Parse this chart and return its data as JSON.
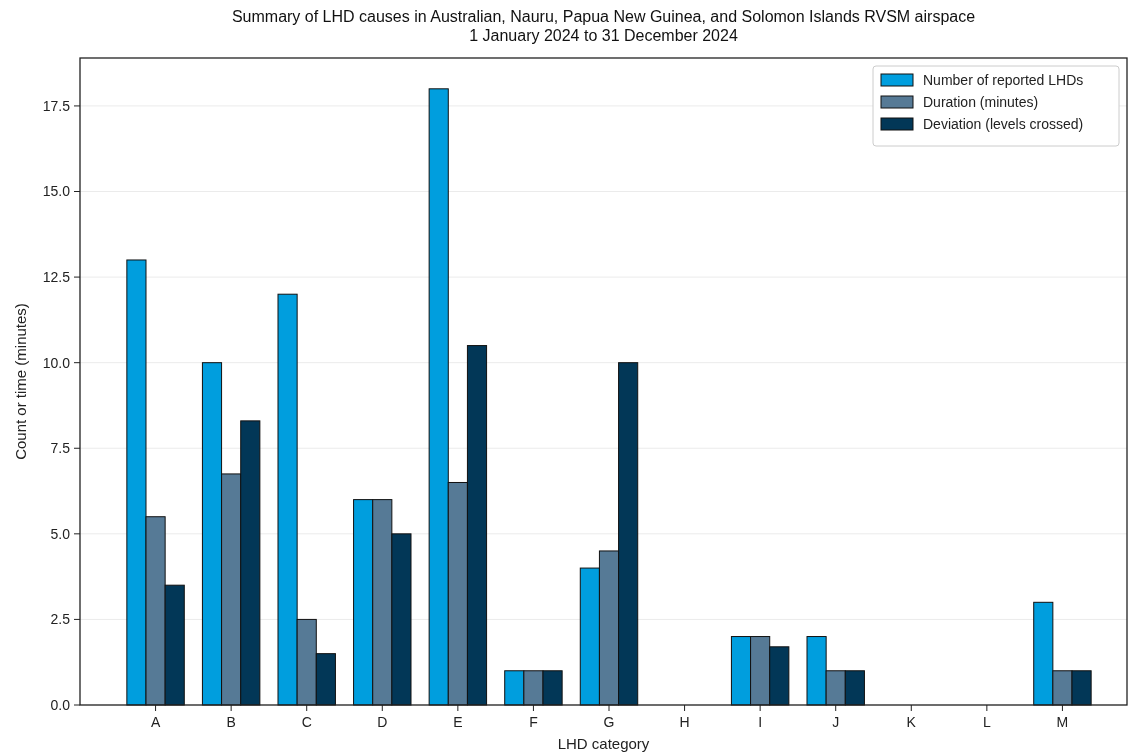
{
  "chart_data": {
    "type": "bar",
    "title": "Summary of LHD causes in Australian, Nauru, Papua New Guinea, and Solomon Islands RVSM airspace",
    "subtitle": "1 January 2024 to 31 December 2024",
    "xlabel": "LHD category",
    "ylabel": "Count or time (minutes)",
    "categories": [
      "A",
      "B",
      "C",
      "D",
      "E",
      "F",
      "G",
      "H",
      "I",
      "J",
      "K",
      "L",
      "M"
    ],
    "series": [
      {
        "name": "Number of reported LHDs",
        "color": "#009ede",
        "values": [
          13,
          10,
          12,
          6,
          18,
          1,
          4,
          0,
          2,
          2,
          0,
          0,
          3
        ]
      },
      {
        "name": "Duration (minutes)",
        "color": "#567a96",
        "values": [
          5.5,
          6.75,
          2.5,
          6,
          6.5,
          1,
          4.5,
          0,
          2,
          1,
          0,
          0,
          1
        ]
      },
      {
        "name": "Deviation (levels crossed)",
        "color": "#023757",
        "values": [
          3.5,
          8.3,
          1.5,
          5,
          10.5,
          1,
          10,
          0,
          1.7,
          1,
          0,
          0,
          1
        ]
      }
    ],
    "ylim": [
      0,
      18.9
    ],
    "yticks": [
      {
        "value": 0,
        "label": "0.0"
      },
      2.5,
      {
        "value": 5,
        "label": "5.0"
      },
      7.5,
      {
        "value": 10,
        "label": "10.0"
      },
      12.5,
      {
        "value": 15,
        "label": "15.0"
      },
      17.5
    ],
    "grid": "y",
    "legend": "top right"
  }
}
